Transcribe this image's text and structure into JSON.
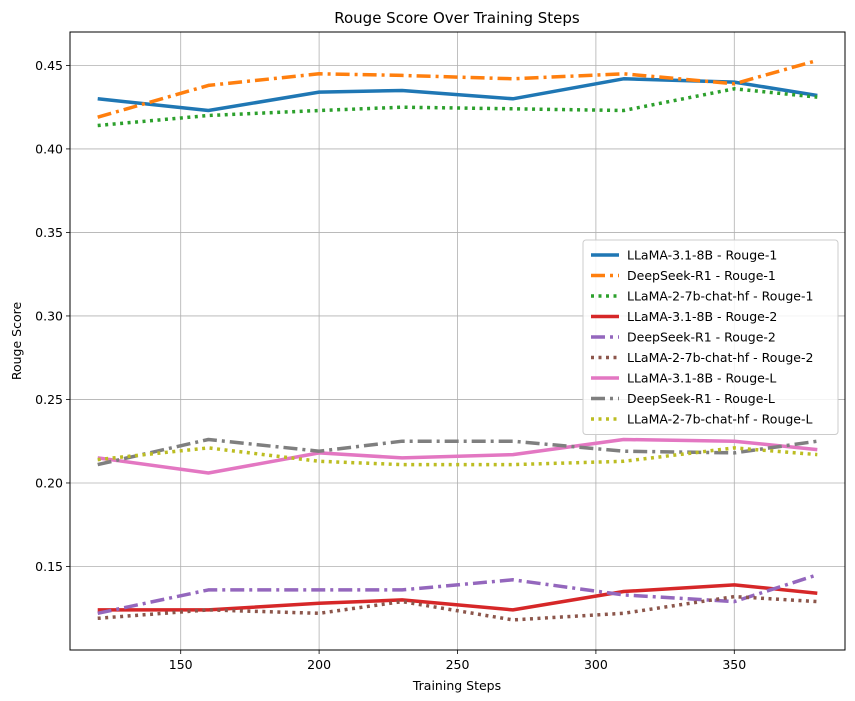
{
  "chart_data": {
    "type": "line",
    "title": "Rouge Score Over Training Steps",
    "xlabel": "Training Steps",
    "ylabel": "Rouge Score",
    "xlim": [
      110,
      390
    ],
    "ylim": [
      0.1,
      0.47
    ],
    "xticks": [
      150,
      200,
      250,
      300,
      350
    ],
    "xtick_labels": [
      "150",
      "200",
      "250",
      "300",
      "350"
    ],
    "yticks": [
      0.15,
      0.2,
      0.25,
      0.3,
      0.35,
      0.4,
      0.45
    ],
    "ytick_labels": [
      "0.15",
      "0.20",
      "0.25",
      "0.30",
      "0.35",
      "0.40",
      "0.45"
    ],
    "grid": true,
    "legend_position": "center-right",
    "x": [
      120,
      160,
      200,
      230,
      270,
      310,
      350,
      380
    ],
    "series": [
      {
        "name": "LLaMA-3.1-8B - Rouge-1",
        "color": "#1f77b4",
        "style": "solid",
        "values": [
          0.43,
          0.423,
          0.434,
          0.435,
          0.43,
          0.442,
          0.44,
          0.432
        ]
      },
      {
        "name": "DeepSeek-R1 - Rouge-1",
        "color": "#ff7f0e",
        "style": "dashdot",
        "values": [
          0.419,
          0.438,
          0.445,
          0.444,
          0.442,
          0.445,
          0.439,
          0.453
        ]
      },
      {
        "name": "LLaMA-2-7b-chat-hf - Rouge-1",
        "color": "#2ca02c",
        "style": "dotted",
        "values": [
          0.414,
          0.42,
          0.423,
          0.425,
          0.424,
          0.423,
          0.436,
          0.431
        ]
      },
      {
        "name": "LLaMA-3.1-8B - Rouge-2",
        "color": "#d62728",
        "style": "solid",
        "values": [
          0.124,
          0.124,
          0.128,
          0.13,
          0.124,
          0.135,
          0.139,
          0.134
        ]
      },
      {
        "name": "DeepSeek-R1 - Rouge-2",
        "color": "#9467bd",
        "style": "dashdot",
        "values": [
          0.122,
          0.136,
          0.136,
          0.136,
          0.142,
          0.133,
          0.129,
          0.145
        ]
      },
      {
        "name": "LLaMA-2-7b-chat-hf - Rouge-2",
        "color": "#8c564b",
        "style": "dotted",
        "values": [
          0.119,
          0.124,
          0.122,
          0.129,
          0.118,
          0.122,
          0.132,
          0.129
        ]
      },
      {
        "name": "LLaMA-3.1-8B - Rouge-L",
        "color": "#e377c2",
        "style": "solid",
        "values": [
          0.215,
          0.206,
          0.218,
          0.215,
          0.217,
          0.226,
          0.225,
          0.22
        ]
      },
      {
        "name": "DeepSeek-R1 - Rouge-L",
        "color": "#7f7f7f",
        "style": "dashdot",
        "values": [
          0.211,
          0.226,
          0.219,
          0.225,
          0.225,
          0.219,
          0.218,
          0.225
        ]
      },
      {
        "name": "LLaMA-2-7b-chat-hf - Rouge-L",
        "color": "#bcbd22",
        "style": "dotted",
        "values": [
          0.214,
          0.221,
          0.213,
          0.211,
          0.211,
          0.213,
          0.221,
          0.217
        ]
      }
    ]
  }
}
